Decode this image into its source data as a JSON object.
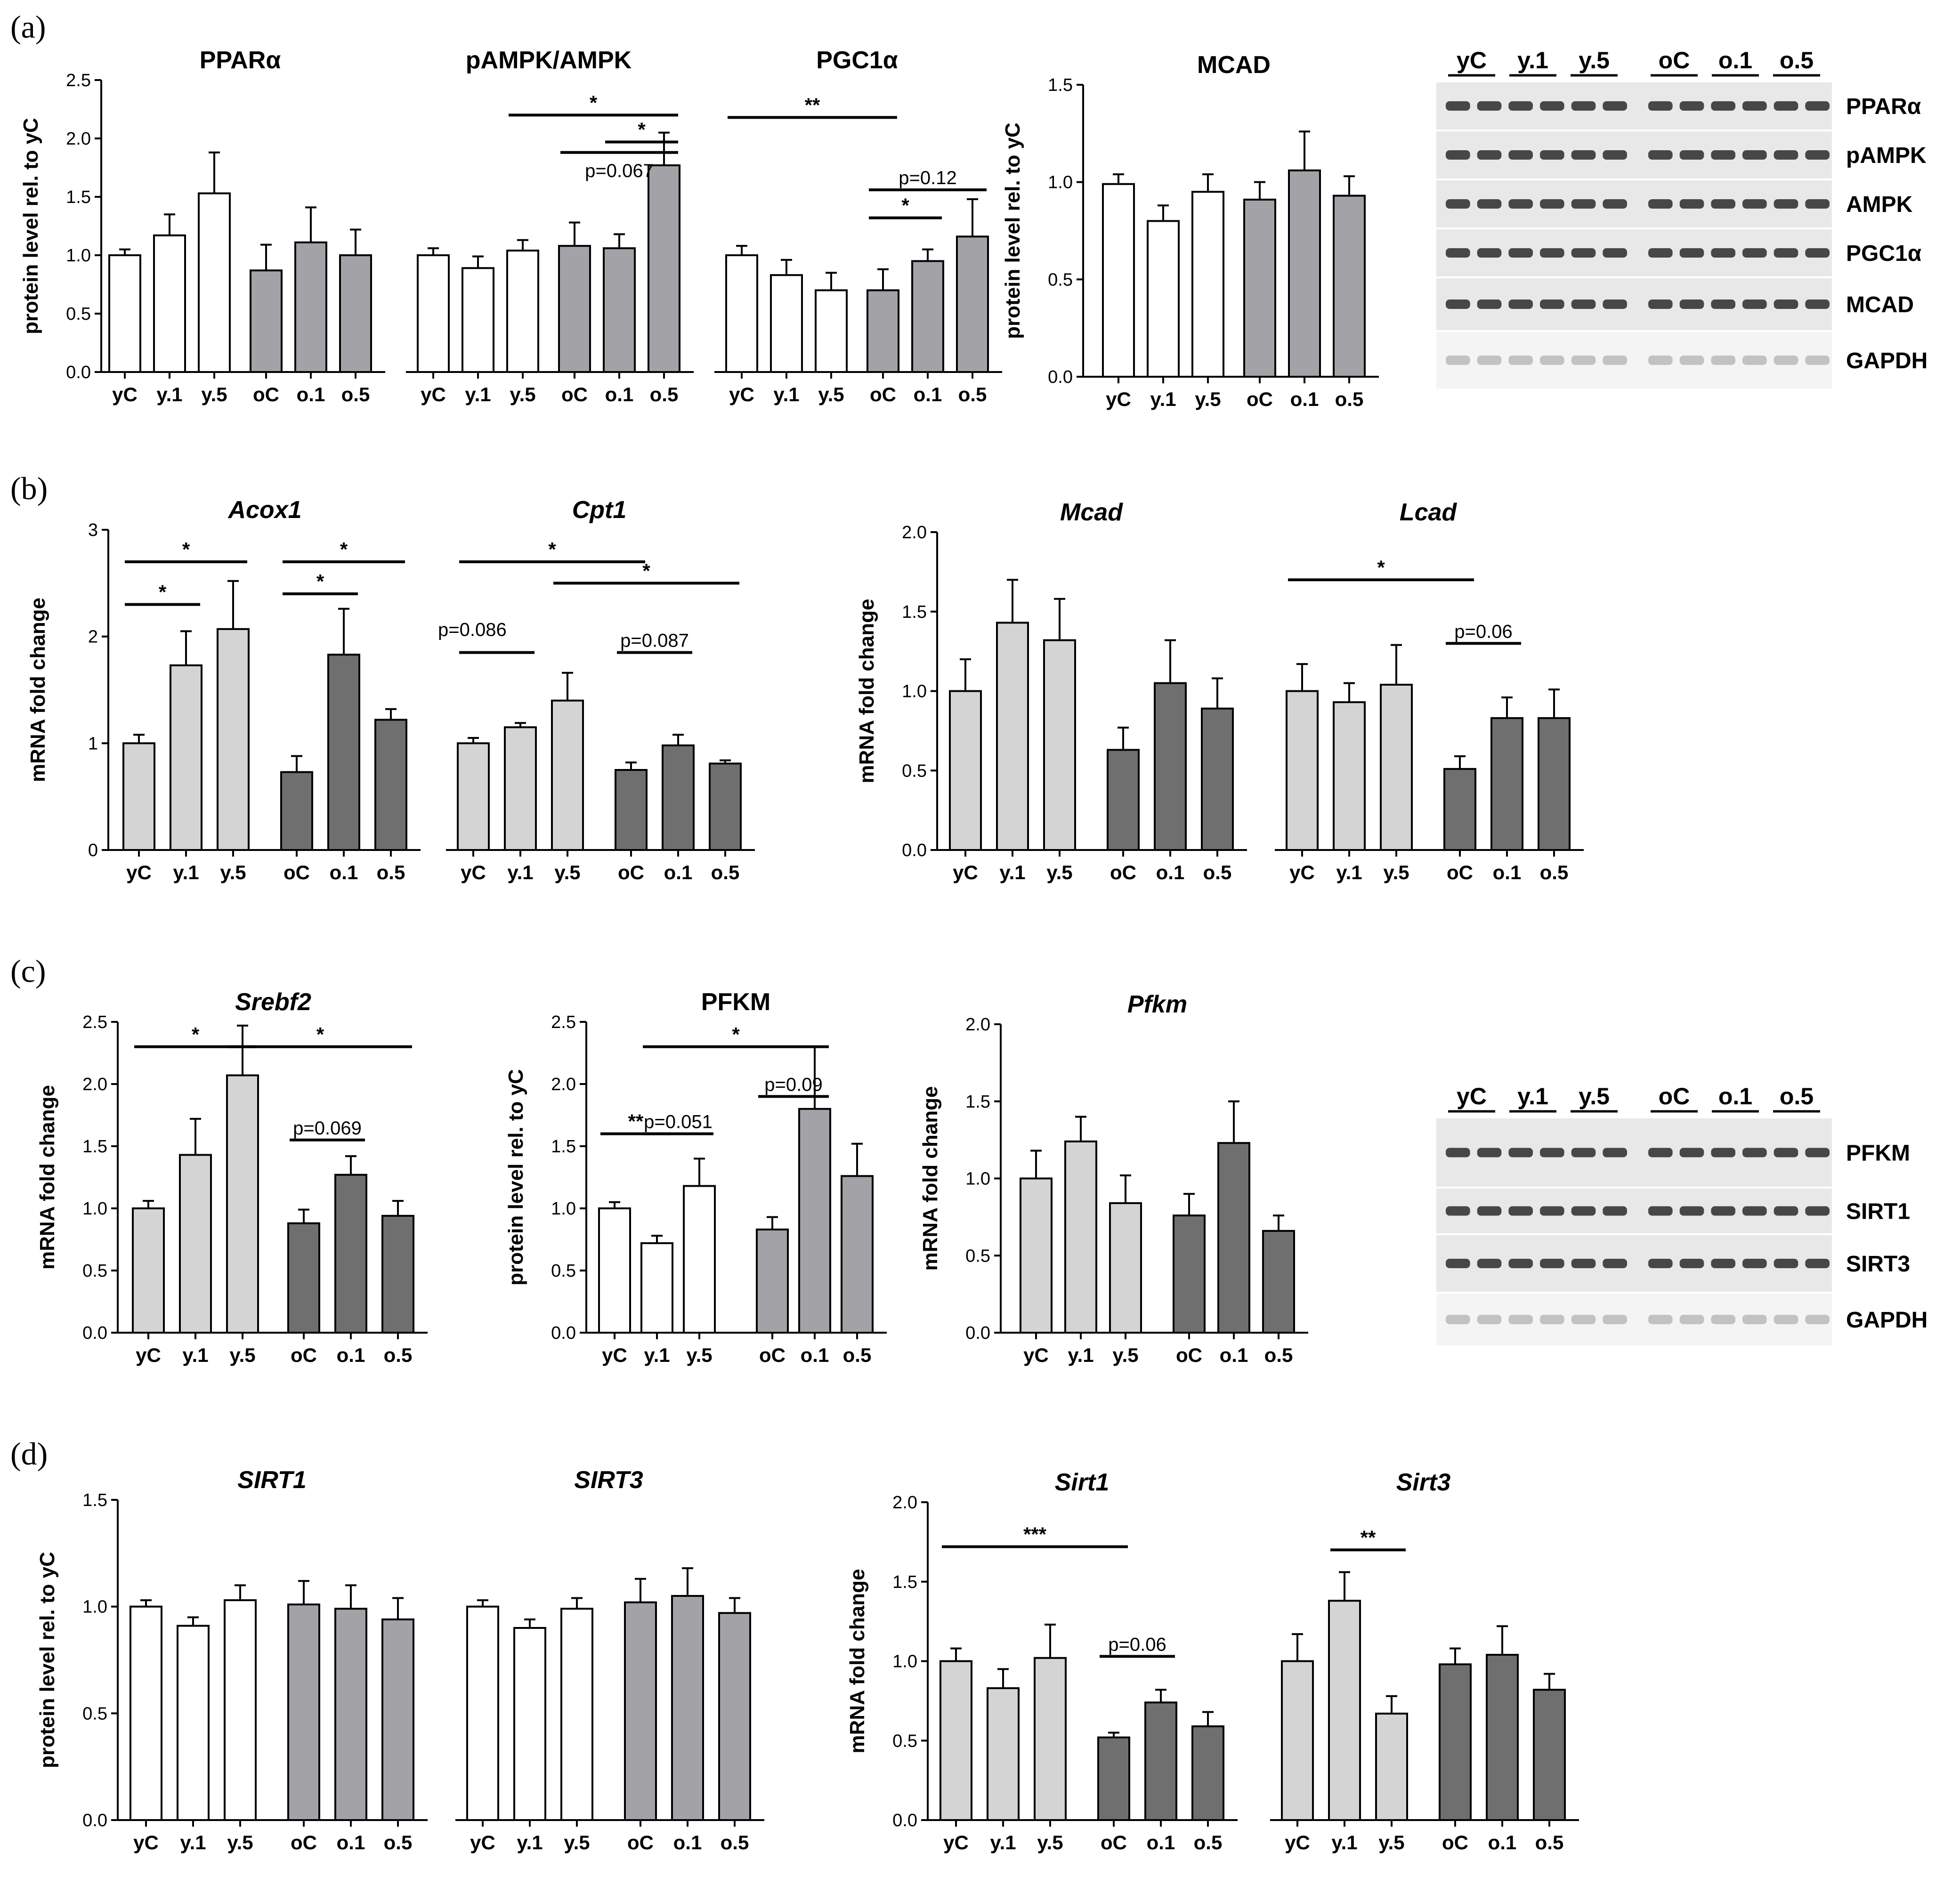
{
  "colors": {
    "white": "#ffffff",
    "protein_old": "#a2a2a7",
    "mrna_young": "#d4d4d4",
    "mrna_old": "#6f6f6f",
    "axis": "#000000"
  },
  "chart_data": [
    {
      "panel": "(a)",
      "type": "bar",
      "title": "PPARα",
      "ylabel": "protein level rel. to yC",
      "ylim": [
        0,
        2.5
      ],
      "yticks": [
        "0.0",
        "0.5",
        "1.0",
        "1.5",
        "2.0",
        "2.5"
      ],
      "group_with_next": true,
      "categories": [
        "yC",
        "y.1",
        "y.5",
        "oC",
        "o.1",
        "o.5"
      ],
      "values": [
        1.0,
        1.17,
        1.53,
        0.87,
        1.11,
        1.0
      ],
      "errors": [
        0.05,
        0.18,
        0.35,
        0.22,
        0.3,
        0.22
      ],
      "colors": [
        "white",
        "white",
        "white",
        "protein_old",
        "protein_old",
        "protein_old"
      ],
      "annotations": []
    },
    {
      "panel": "(a)",
      "type": "bar",
      "title": "pAMPK/AMPK",
      "ylabel": "",
      "ylim": [
        0,
        2.5
      ],
      "yticks": [],
      "group_with_next": true,
      "categories": [
        "yC",
        "y.1",
        "y.5",
        "oC",
        "o.1",
        "o.5"
      ],
      "values": [
        1.0,
        0.89,
        1.04,
        1.08,
        1.06,
        1.77
      ],
      "errors": [
        0.06,
        0.1,
        0.09,
        0.2,
        0.12,
        0.28
      ],
      "colors": [
        "white",
        "white",
        "white",
        "protein_old",
        "protein_old",
        "protein_old"
      ],
      "annotations": [
        {
          "from": 2,
          "to": 5,
          "y": 2.2,
          "label": "*"
        },
        {
          "from": 4,
          "to": 5,
          "y": 1.97,
          "label": "*"
        },
        {
          "from": 3,
          "to": 5,
          "y": 1.88,
          "label": "p=0.067",
          "below": true
        }
      ]
    },
    {
      "panel": "(a)",
      "type": "bar",
      "title": "PGC1α",
      "ylabel": "",
      "ylim": [
        0,
        2.5
      ],
      "yticks": [],
      "categories": [
        "yC",
        "y.1",
        "y.5",
        "oC",
        "o.1",
        "o.5"
      ],
      "values": [
        1.0,
        0.83,
        0.7,
        0.7,
        0.95,
        1.16
      ],
      "errors": [
        0.08,
        0.13,
        0.15,
        0.18,
        0.1,
        0.32
      ],
      "colors": [
        "white",
        "white",
        "white",
        "protein_old",
        "protein_old",
        "protein_old"
      ],
      "annotations": [
        {
          "from": 0,
          "to": 3,
          "y": 2.18,
          "label": "**"
        },
        {
          "from": 3,
          "to": 5,
          "y": 1.56,
          "label": "p=0.12"
        },
        {
          "from": 3,
          "to": 4,
          "y": 1.32,
          "label": "*"
        }
      ]
    },
    {
      "panel": "(a)",
      "type": "bar",
      "title": "MCAD",
      "ylabel": "protein level rel. to yC",
      "ylim": [
        0,
        1.5
      ],
      "yticks": [
        "0.0",
        "0.5",
        "1.0",
        "1.5"
      ],
      "categories": [
        "yC",
        "y.1",
        "y.5",
        "oC",
        "o.1",
        "o.5"
      ],
      "values": [
        0.99,
        0.8,
        0.95,
        0.91,
        1.06,
        0.93
      ],
      "errors": [
        0.05,
        0.08,
        0.09,
        0.09,
        0.2,
        0.1
      ],
      "colors": [
        "white",
        "white",
        "white",
        "protein_old",
        "protein_old",
        "protein_old"
      ],
      "annotations": []
    },
    {
      "panel": "(b)",
      "type": "bar",
      "title": "Acox1",
      "italic": true,
      "ylabel": "mRNA fold change",
      "ylim": [
        0,
        3
      ],
      "yticks": [
        "0",
        "1",
        "2",
        "3"
      ],
      "group_with_next": true,
      "categories": [
        "yC",
        "y.1",
        "y.5",
        "oC",
        "o.1",
        "o.5"
      ],
      "values": [
        1.0,
        1.73,
        2.07,
        0.73,
        1.83,
        1.22
      ],
      "errors": [
        0.08,
        0.32,
        0.45,
        0.15,
        0.43,
        0.1
      ],
      "colors": [
        "mrna_young",
        "mrna_young",
        "mrna_young",
        "mrna_old",
        "mrna_old",
        "mrna_old"
      ],
      "annotations": [
        {
          "from": 0,
          "to": 2,
          "y": 2.7,
          "label": "*"
        },
        {
          "from": 0,
          "to": 1,
          "y": 2.3,
          "label": "*"
        },
        {
          "from": 3,
          "to": 5,
          "y": 2.7,
          "label": "*"
        },
        {
          "from": 3,
          "to": 4,
          "y": 2.4,
          "label": "*"
        }
      ]
    },
    {
      "panel": "(b)",
      "type": "bar",
      "title": "Cpt1",
      "italic": true,
      "ylabel": "",
      "ylim": [
        0,
        3
      ],
      "yticks": [],
      "categories": [
        "yC",
        "y.1",
        "y.5",
        "oC",
        "o.1",
        "o.5"
      ],
      "values": [
        1.0,
        1.15,
        1.4,
        0.75,
        0.98,
        0.81
      ],
      "errors": [
        0.05,
        0.04,
        0.26,
        0.07,
        0.1,
        0.03
      ],
      "colors": [
        "mrna_young",
        "mrna_young",
        "mrna_young",
        "mrna_old",
        "mrna_old",
        "mrna_old"
      ],
      "annotations": [
        {
          "from": 0,
          "to": 3,
          "y": 2.7,
          "label": "*"
        },
        {
          "from": 2,
          "to": 5,
          "y": 2.5,
          "label": "*"
        },
        {
          "from": 0,
          "to": 1,
          "y": 1.85,
          "label": "p=0.086",
          "left": true
        },
        {
          "from": 3,
          "to": 4,
          "y": 1.85,
          "label": "p=0.087"
        }
      ]
    },
    {
      "panel": "(b)",
      "type": "bar",
      "title": "Mcad",
      "italic": true,
      "ylabel": "mRNA fold change",
      "ylim": [
        0,
        2.0
      ],
      "yticks": [
        "0.0",
        "0.5",
        "1.0",
        "1.5",
        "2.0"
      ],
      "group_with_next": true,
      "categories": [
        "yC",
        "y.1",
        "y.5",
        "oC",
        "o.1",
        "o.5"
      ],
      "values": [
        1.0,
        1.43,
        1.32,
        0.63,
        1.05,
        0.89
      ],
      "errors": [
        0.2,
        0.27,
        0.26,
        0.14,
        0.27,
        0.19
      ],
      "colors": [
        "mrna_young",
        "mrna_young",
        "mrna_young",
        "mrna_old",
        "mrna_old",
        "mrna_old"
      ],
      "annotations": []
    },
    {
      "panel": "(b)",
      "type": "bar",
      "title": "Lcad",
      "italic": true,
      "ylabel": "",
      "ylim": [
        0,
        2.0
      ],
      "yticks": [],
      "categories": [
        "yC",
        "y.1",
        "y.5",
        "oC",
        "o.1",
        "o.5"
      ],
      "values": [
        1.0,
        0.93,
        1.04,
        0.51,
        0.83,
        0.83
      ],
      "errors": [
        0.17,
        0.12,
        0.25,
        0.08,
        0.13,
        0.18
      ],
      "colors": [
        "mrna_young",
        "mrna_young",
        "mrna_young",
        "mrna_old",
        "mrna_old",
        "mrna_old"
      ],
      "annotations": [
        {
          "from": 0,
          "to": 3,
          "y": 1.7,
          "label": "*"
        },
        {
          "from": 3,
          "to": 4,
          "y": 1.3,
          "label": "p=0.06"
        }
      ]
    },
    {
      "panel": "(c)",
      "type": "bar",
      "title": "Srebf2",
      "italic": true,
      "ylabel": "mRNA fold change",
      "ylim": [
        0,
        2.5
      ],
      "yticks": [
        "0.0",
        "0.5",
        "1.0",
        "1.5",
        "2.0",
        "2.5"
      ],
      "categories": [
        "yC",
        "y.1",
        "y.5",
        "oC",
        "o.1",
        "o.5"
      ],
      "values": [
        1.0,
        1.43,
        2.07,
        0.88,
        1.27,
        0.94
      ],
      "errors": [
        0.06,
        0.29,
        0.4,
        0.11,
        0.15,
        0.12
      ],
      "colors": [
        "mrna_young",
        "mrna_young",
        "mrna_young",
        "mrna_old",
        "mrna_old",
        "mrna_old"
      ],
      "annotations": [
        {
          "from": 0,
          "to": 2,
          "y": 2.3,
          "label": "*"
        },
        {
          "from": 2,
          "to": 5,
          "y": 2.3,
          "label": "*"
        },
        {
          "from": 3,
          "to": 4,
          "y": 1.55,
          "label": "p=0.069"
        }
      ]
    },
    {
      "panel": "(c)",
      "type": "bar",
      "title": "PFKM",
      "ylabel": "protein level rel. to yC",
      "ylim": [
        0,
        2.5
      ],
      "yticks": [
        "0.0",
        "0.5",
        "1.0",
        "1.5",
        "2.0",
        "2.5"
      ],
      "categories": [
        "yC",
        "y.1",
        "y.5",
        "oC",
        "o.1",
        "o.5"
      ],
      "values": [
        1.0,
        0.72,
        1.18,
        0.83,
        1.8,
        1.26
      ],
      "errors": [
        0.05,
        0.06,
        0.22,
        0.1,
        0.5,
        0.26
      ],
      "colors": [
        "white",
        "white",
        "white",
        "protein_old",
        "protein_old",
        "protein_old"
      ],
      "annotations": [
        {
          "from": 1,
          "to": 4,
          "y": 2.3,
          "label": "*"
        },
        {
          "from": 3,
          "to": 4,
          "y": 1.9,
          "label": "p=0.09"
        },
        {
          "from": 0,
          "to": 1,
          "y": 1.6,
          "label": "**"
        },
        {
          "from": 1,
          "to": 2,
          "y": 1.6,
          "label": "p=0.051"
        }
      ]
    },
    {
      "panel": "(c)",
      "type": "bar",
      "title": "Pfkm",
      "italic": true,
      "ylabel": "mRNA fold change",
      "ylim": [
        0,
        2.0
      ],
      "yticks": [
        "0.0",
        "0.5",
        "1.0",
        "1.5",
        "2.0"
      ],
      "categories": [
        "yC",
        "y.1",
        "y.5",
        "oC",
        "o.1",
        "o.5"
      ],
      "values": [
        1.0,
        1.24,
        0.84,
        0.76,
        1.23,
        0.66
      ],
      "errors": [
        0.18,
        0.16,
        0.18,
        0.14,
        0.27,
        0.1
      ],
      "colors": [
        "mrna_young",
        "mrna_young",
        "mrna_young",
        "mrna_old",
        "mrna_old",
        "mrna_old"
      ],
      "annotations": []
    },
    {
      "panel": "(d)",
      "type": "bar",
      "title": "SIRT1",
      "italic": true,
      "ylabel": "protein level rel. to yC",
      "ylim": [
        0,
        1.5
      ],
      "yticks": [
        "0.0",
        "0.5",
        "1.0",
        "1.5"
      ],
      "group_with_next": true,
      "categories": [
        "yC",
        "y.1",
        "y.5",
        "oC",
        "o.1",
        "o.5"
      ],
      "values": [
        1.0,
        0.91,
        1.03,
        1.01,
        0.99,
        0.94
      ],
      "errors": [
        0.03,
        0.04,
        0.07,
        0.11,
        0.11,
        0.1
      ],
      "colors": [
        "white",
        "white",
        "white",
        "protein_old",
        "protein_old",
        "protein_old"
      ],
      "annotations": []
    },
    {
      "panel": "(d)",
      "type": "bar",
      "title": "SIRT3",
      "italic": true,
      "ylabel": "",
      "ylim": [
        0,
        1.5
      ],
      "yticks": [],
      "categories": [
        "yC",
        "y.1",
        "y.5",
        "oC",
        "o.1",
        "o.5"
      ],
      "values": [
        1.0,
        0.9,
        0.99,
        1.02,
        1.05,
        0.97
      ],
      "errors": [
        0.03,
        0.04,
        0.05,
        0.11,
        0.13,
        0.07
      ],
      "colors": [
        "white",
        "white",
        "white",
        "protein_old",
        "protein_old",
        "protein_old"
      ],
      "annotations": []
    },
    {
      "panel": "(d)",
      "type": "bar",
      "title": "Sirt1",
      "italic": true,
      "ylabel": "mRNA fold change",
      "ylim": [
        0,
        2.0
      ],
      "yticks": [
        "0.0",
        "0.5",
        "1.0",
        "1.5",
        "2.0"
      ],
      "group_with_next": true,
      "categories": [
        "yC",
        "y.1",
        "y.5",
        "oC",
        "o.1",
        "o.5"
      ],
      "values": [
        1.0,
        0.83,
        1.02,
        0.52,
        0.74,
        0.59
      ],
      "errors": [
        0.08,
        0.12,
        0.21,
        0.03,
        0.08,
        0.09
      ],
      "colors": [
        "mrna_young",
        "mrna_young",
        "mrna_young",
        "mrna_old",
        "mrna_old",
        "mrna_old"
      ],
      "annotations": [
        {
          "from": 0,
          "to": 3,
          "y": 1.72,
          "label": "***"
        },
        {
          "from": 3,
          "to": 4,
          "y": 1.03,
          "label": "p=0.06"
        }
      ]
    },
    {
      "panel": "(d)",
      "type": "bar",
      "title": "Sirt3",
      "italic": true,
      "ylabel": "",
      "ylim": [
        0,
        2.0
      ],
      "yticks": [],
      "categories": [
        "yC",
        "y.1",
        "y.5",
        "oC",
        "o.1",
        "o.5"
      ],
      "values": [
        1.0,
        1.38,
        0.67,
        0.98,
        1.04,
        0.82
      ],
      "errors": [
        0.17,
        0.18,
        0.11,
        0.1,
        0.18,
        0.1
      ],
      "colors": [
        "mrna_young",
        "mrna_young",
        "mrna_young",
        "mrna_old",
        "mrna_old",
        "mrna_old"
      ],
      "annotations": [
        {
          "from": 1,
          "to": 2,
          "y": 1.7,
          "label": "**"
        }
      ]
    }
  ],
  "panel_labels": [
    "(a)",
    "(b)",
    "(c)",
    "(d)"
  ],
  "blots": [
    {
      "groups": [
        "yC",
        "y.1",
        "y.5",
        "oC",
        "o.1",
        "o.5"
      ],
      "rows": [
        "PPARα",
        "pAMPK",
        "AMPK",
        "PGC1α",
        "MCAD",
        "GAPDH"
      ]
    },
    {
      "groups": [
        "yC",
        "y.1",
        "y.5",
        "oC",
        "o.1",
        "o.5"
      ],
      "rows": [
        "PFKM",
        "SIRT1",
        "SIRT3",
        "GAPDH"
      ]
    }
  ]
}
